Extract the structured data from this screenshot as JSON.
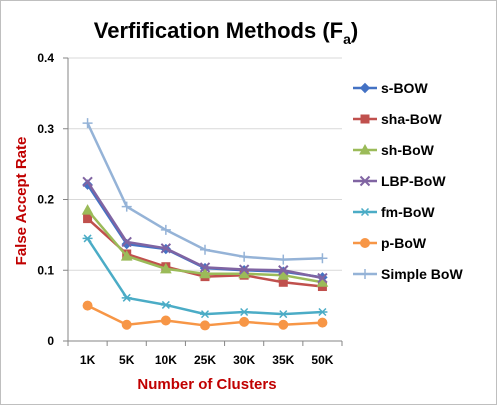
{
  "chart_data": {
    "type": "line",
    "title": "Verfification Methods (F",
    "title_subscript": "a",
    "title_suffix": ")",
    "xlabel": "Number of Clusters",
    "ylabel": "False Accept Rate",
    "categories": [
      "1K",
      "5K",
      "10K",
      "25K",
      "30K",
      "35K",
      "50K"
    ],
    "ylim": [
      0,
      0.4
    ],
    "yticks": [
      0,
      0.1,
      0.2,
      0.3,
      0.4
    ],
    "ytick_labels": [
      "0",
      "0.1",
      "0.2",
      "0.3",
      "0.4"
    ],
    "grid": true,
    "legend_position": "right",
    "series": [
      {
        "name": "s-BOW",
        "color": "#4472c4",
        "marker": "diamond",
        "values": [
          0.221,
          0.137,
          0.13,
          0.103,
          0.1,
          0.098,
          0.09
        ]
      },
      {
        "name": "sha-BoW",
        "color": "#c0504d",
        "marker": "square",
        "values": [
          0.173,
          0.123,
          0.105,
          0.091,
          0.093,
          0.083,
          0.077
        ]
      },
      {
        "name": "sh-BoW",
        "color": "#9bbb59",
        "marker": "triangle",
        "values": [
          0.185,
          0.12,
          0.102,
          0.095,
          0.095,
          0.093,
          0.083
        ]
      },
      {
        "name": "LBP-BoW",
        "color": "#8064a2",
        "marker": "x",
        "values": [
          0.225,
          0.14,
          0.131,
          0.104,
          0.101,
          0.1,
          0.089
        ]
      },
      {
        "name": "fm-BoW",
        "color": "#4bacc6",
        "marker": "star",
        "values": [
          0.145,
          0.061,
          0.051,
          0.038,
          0.041,
          0.038,
          0.041
        ]
      },
      {
        "name": "p-BoW",
        "color": "#f79646",
        "marker": "circle",
        "values": [
          0.05,
          0.023,
          0.029,
          0.022,
          0.027,
          0.023,
          0.026
        ]
      },
      {
        "name": "Simple BoW",
        "color": "#95b3d7",
        "marker": "plus",
        "values": [
          0.308,
          0.19,
          0.157,
          0.129,
          0.119,
          0.115,
          0.117
        ]
      }
    ]
  }
}
